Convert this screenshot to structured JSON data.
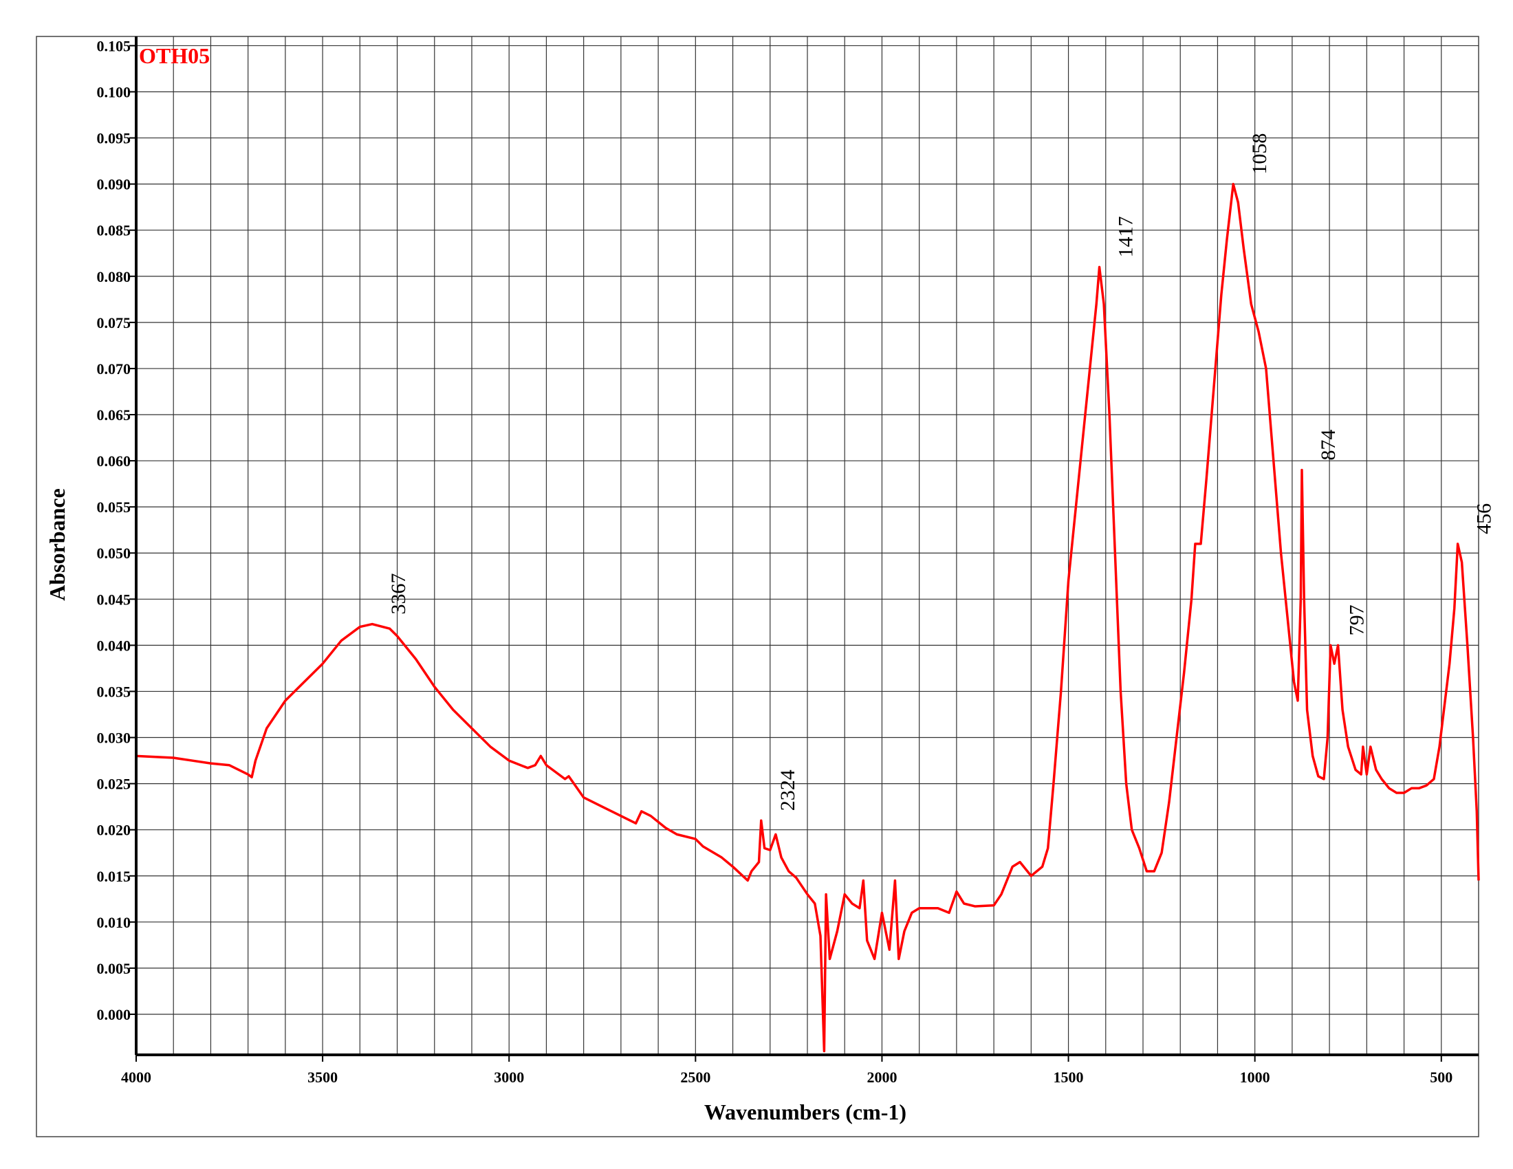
{
  "chart_data": {
    "type": "line",
    "title": "OTH05",
    "x_label": "Wavenumbers (cm-1)",
    "y_label": "Absorbance",
    "xlim": [
      4000,
      400
    ],
    "ylim": [
      -0.0044,
      0.106
    ],
    "xticks": [
      4000,
      3500,
      3000,
      2500,
      2000,
      1500,
      1000,
      500
    ],
    "xgrid": [
      3900,
      3800,
      3700,
      3600,
      3500,
      3400,
      3300,
      3200,
      3100,
      3000,
      2900,
      2800,
      2700,
      2600,
      2500,
      2400,
      2300,
      2200,
      2100,
      2000,
      1900,
      1800,
      1700,
      1600,
      1500,
      1400,
      1300,
      1200,
      1100,
      1000,
      900,
      800,
      700,
      600,
      500
    ],
    "yticks": [
      {
        "value": 0,
        "label": "0.000"
      },
      0.005,
      {
        "value": 0.01,
        "label": "0.010"
      },
      0.015,
      {
        "value": 0.02,
        "label": "0.020"
      },
      0.025,
      {
        "value": 0.03,
        "label": "0.030"
      },
      0.035,
      {
        "value": 0.04,
        "label": "0.040"
      },
      0.045,
      {
        "value": 0.05,
        "label": "0.050"
      },
      0.055,
      {
        "value": 0.06,
        "label": "0.060"
      },
      0.065,
      {
        "value": 0.07,
        "label": "0.070"
      },
      0.075,
      {
        "value": 0.08,
        "label": "0.080"
      },
      0.085,
      {
        "value": 0.09,
        "label": "0.090"
      },
      0.095,
      {
        "value": 0.1,
        "label": "0.100"
      },
      0.105
    ],
    "grid": true,
    "series": [
      {
        "name": "OTH05",
        "color": "#ff0000",
        "x": [
          4000,
          3900,
          3850,
          3800,
          3750,
          3700,
          3690,
          3680,
          3650,
          3600,
          3550,
          3500,
          3450,
          3400,
          3367,
          3320,
          3300,
          3250,
          3200,
          3150,
          3100,
          3050,
          3000,
          2950,
          2930,
          2915,
          2900,
          2850,
          2840,
          2800,
          2750,
          2700,
          2660,
          2645,
          2620,
          2580,
          2550,
          2500,
          2480,
          2430,
          2400,
          2360,
          2350,
          2330,
          2324,
          2315,
          2300,
          2285,
          2270,
          2250,
          2230,
          2200,
          2180,
          2165,
          2155,
          2150,
          2140,
          2120,
          2100,
          2080,
          2060,
          2050,
          2040,
          2020,
          2000,
          1980,
          1965,
          1955,
          1940,
          1920,
          1900,
          1850,
          1820,
          1800,
          1780,
          1750,
          1700,
          1680,
          1650,
          1630,
          1600,
          1570,
          1555,
          1540,
          1520,
          1500,
          1480,
          1460,
          1440,
          1425,
          1417,
          1405,
          1390,
          1375,
          1360,
          1345,
          1330,
          1310,
          1290,
          1270,
          1250,
          1230,
          1210,
          1190,
          1170,
          1160,
          1145,
          1130,
          1110,
          1090,
          1075,
          1058,
          1045,
          1030,
          1010,
          990,
          970,
          950,
          930,
          910,
          895,
          885,
          877,
          874,
          868,
          860,
          845,
          830,
          815,
          805,
          797,
          787,
          777,
          765,
          750,
          730,
          715,
          710,
          700,
          690,
          675,
          660,
          640,
          620,
          600,
          580,
          560,
          540,
          520,
          505,
          490,
          478,
          465,
          456,
          445,
          430,
          415,
          405,
          400
        ],
        "values": [
          0.028,
          0.0278,
          0.0275,
          0.0272,
          0.027,
          0.026,
          0.0257,
          0.0275,
          0.031,
          0.034,
          0.036,
          0.038,
          0.0405,
          0.042,
          0.0423,
          0.0418,
          0.041,
          0.0385,
          0.0355,
          0.033,
          0.031,
          0.029,
          0.0275,
          0.0267,
          0.027,
          0.028,
          0.027,
          0.0255,
          0.0258,
          0.0235,
          0.0225,
          0.0215,
          0.0207,
          0.022,
          0.0215,
          0.0202,
          0.0195,
          0.019,
          0.0182,
          0.017,
          0.016,
          0.0145,
          0.0155,
          0.0165,
          0.021,
          0.018,
          0.0178,
          0.0195,
          0.017,
          0.0155,
          0.0148,
          0.013,
          0.012,
          0.0085,
          -0.004,
          0.013,
          0.006,
          0.009,
          0.013,
          0.012,
          0.0115,
          0.0145,
          0.008,
          0.006,
          0.011,
          0.007,
          0.0145,
          0.006,
          0.009,
          0.011,
          0.0115,
          0.0115,
          0.011,
          0.0133,
          0.012,
          0.0117,
          0.0118,
          0.013,
          0.016,
          0.0165,
          0.015,
          0.016,
          0.018,
          0.025,
          0.035,
          0.047,
          0.055,
          0.063,
          0.071,
          0.077,
          0.081,
          0.077,
          0.065,
          0.05,
          0.035,
          0.025,
          0.02,
          0.018,
          0.0155,
          0.0155,
          0.0175,
          0.023,
          0.03,
          0.037,
          0.045,
          0.051,
          0.051,
          0.058,
          0.068,
          0.078,
          0.084,
          0.09,
          0.088,
          0.083,
          0.077,
          0.074,
          0.07,
          0.06,
          0.05,
          0.042,
          0.036,
          0.034,
          0.045,
          0.059,
          0.045,
          0.033,
          0.028,
          0.0258,
          0.0255,
          0.03,
          0.04,
          0.038,
          0.04,
          0.033,
          0.029,
          0.0265,
          0.026,
          0.029,
          0.026,
          0.029,
          0.0265,
          0.0255,
          0.0245,
          0.024,
          0.024,
          0.0245,
          0.0245,
          0.0248,
          0.0255,
          0.029,
          0.034,
          0.038,
          0.044,
          0.051,
          0.049,
          0.04,
          0.03,
          0.022,
          0.0145
        ]
      }
    ],
    "peak_labels": [
      {
        "label": "3367",
        "x": 3367,
        "y": 0.0423
      },
      {
        "label": "2324",
        "x": 2324,
        "y": 0.021
      },
      {
        "label": "1417",
        "x": 1417,
        "y": 0.081
      },
      {
        "label": "1058",
        "x": 1058,
        "y": 0.09
      },
      {
        "label": "874",
        "x": 874,
        "y": 0.059
      },
      {
        "label": "797",
        "x": 797,
        "y": 0.04
      },
      {
        "label": "456",
        "x": 456,
        "y": 0.051
      }
    ]
  }
}
